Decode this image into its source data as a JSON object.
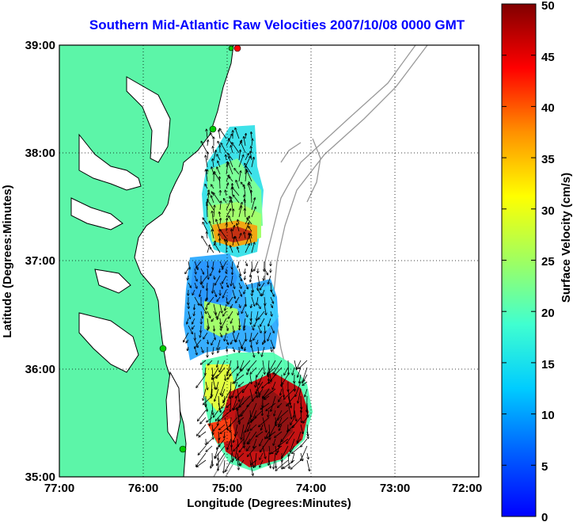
{
  "title": "Southern Mid-Atlantic Raw Velocities 2007/10/08 0000 GMT",
  "xlabel": "Longitude (Degrees:Minutes)",
  "ylabel": "Latitude (Degrees:Minutes)",
  "colorbar_label": "Surface Velocity (cm/s)",
  "x_ticks": [
    "77:00",
    "76:00",
    "75:00",
    "74:00",
    "73:00",
    "72:00"
  ],
  "y_ticks": [
    "39:00",
    "38:00",
    "37:00",
    "36:00",
    "35:00"
  ],
  "colorbar_ticks": [
    "50",
    "45",
    "40",
    "35",
    "30",
    "25",
    "20",
    "15",
    "10",
    "5",
    "0"
  ],
  "colors": {
    "land": "#5cf5a8",
    "coastline": "#000000",
    "bathymetry": "#999999",
    "title": "#0000ff",
    "station_green": "#00cc00",
    "station_red": "#ff0000"
  },
  "chart_data": {
    "type": "heatmap",
    "xlim_deg_west": [
      77,
      72
    ],
    "ylim_deg_north": [
      35,
      39
    ],
    "colorbar_range_cm_s": [
      0,
      50
    ],
    "grid": true,
    "legend": "colorbar-right"
  }
}
